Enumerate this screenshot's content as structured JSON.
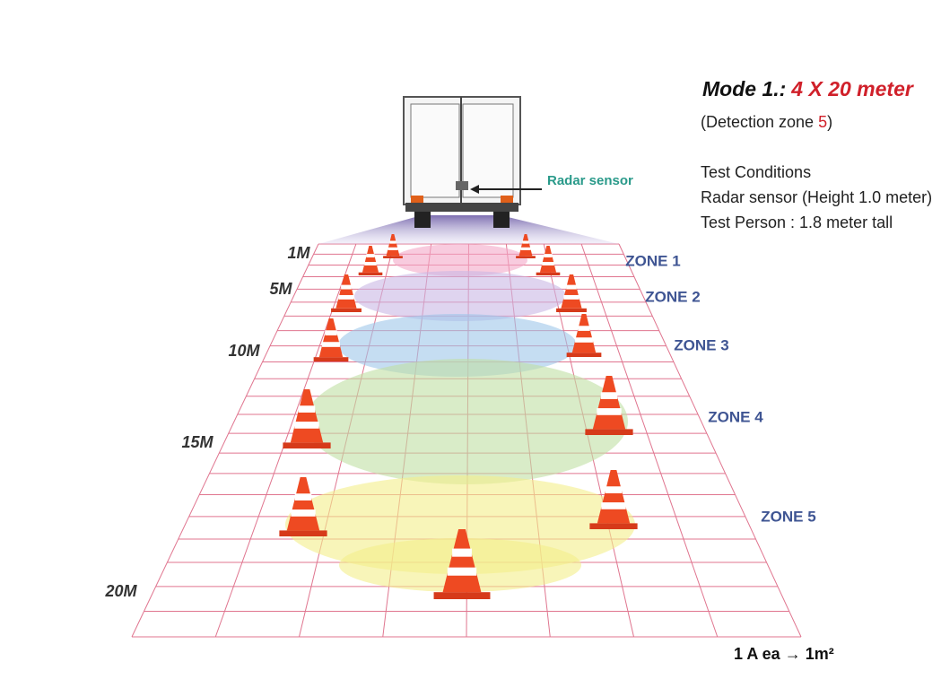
{
  "mode": {
    "label": "Mode 1.:",
    "value": "4 X 20 meter"
  },
  "detection_zone": {
    "prefix": "(Detection zone ",
    "number": "5",
    "suffix": ")"
  },
  "test_conditions": {
    "title": "Test Conditions",
    "items": [
      "Radar sensor (Height 1.0 meter)",
      "Test Person : 1.8 meter tall"
    ]
  },
  "radar_label": "Radar sensor",
  "distances": [
    "1M",
    "5M",
    "10M",
    "15M",
    "20M"
  ],
  "zones": [
    "ZONE 1",
    "ZONE 2",
    "ZONE 3",
    "ZONE 4",
    "ZONE 5"
  ],
  "footer": "1 A ea → 1m²"
}
